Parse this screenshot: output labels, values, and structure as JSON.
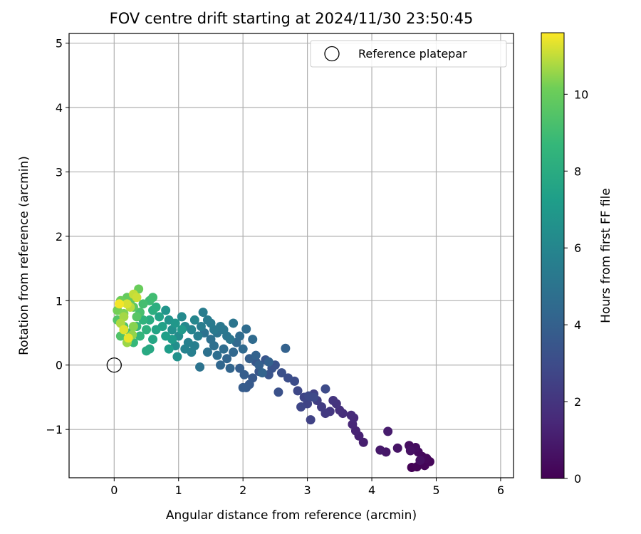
{
  "chart_data": {
    "type": "scatter",
    "title": "FOV centre drift starting at 2024/11/30 23:50:45",
    "xlabel": "Angular distance from reference (arcmin)",
    "ylabel": "Rotation from reference (arcmin)",
    "xlim": [
      -0.7,
      6.2
    ],
    "ylim": [
      -1.75,
      5.15
    ],
    "xticks": [
      0,
      1,
      2,
      3,
      4,
      5,
      6
    ],
    "yticks": [
      -1,
      0,
      1,
      2,
      3,
      4,
      5
    ],
    "grid": true,
    "colormap": "viridis",
    "colorbar": {
      "label": "Hours from first FF file",
      "range": [
        0,
        11.6
      ],
      "ticks": [
        0,
        2,
        4,
        6,
        8,
        10
      ]
    },
    "legend": {
      "position": "top-right",
      "entries": [
        "Reference platepar"
      ]
    },
    "reference_point": {
      "x": 0,
      "y": 0,
      "label": "Reference platepar"
    },
    "points": [
      [
        4.62,
        -1.59,
        0.05
      ],
      [
        4.7,
        -1.58,
        0.1
      ],
      [
        4.82,
        -1.56,
        0.15
      ],
      [
        4.9,
        -1.5,
        0.2
      ],
      [
        4.85,
        -1.45,
        0.25
      ],
      [
        4.78,
        -1.42,
        0.3
      ],
      [
        4.72,
        -1.35,
        0.35
      ],
      [
        4.65,
        -1.3,
        0.4
      ],
      [
        4.58,
        -1.25,
        0.45
      ],
      [
        4.68,
        -1.28,
        0.5
      ],
      [
        4.75,
        -1.48,
        0.55
      ],
      [
        4.6,
        -1.33,
        0.6
      ],
      [
        4.4,
        -1.29,
        0.7
      ],
      [
        4.22,
        -1.35,
        0.8
      ],
      [
        4.13,
        -1.32,
        0.9
      ],
      [
        4.25,
        -1.03,
        1.0
      ],
      [
        3.87,
        -1.2,
        1.1
      ],
      [
        3.8,
        -1.1,
        1.2
      ],
      [
        3.75,
        -1.02,
        1.3
      ],
      [
        3.7,
        -0.92,
        1.4
      ],
      [
        3.72,
        -0.82,
        1.5
      ],
      [
        3.68,
        -0.78,
        1.6
      ],
      [
        3.55,
        -0.75,
        1.7
      ],
      [
        3.5,
        -0.7,
        1.8
      ],
      [
        3.45,
        -0.6,
        1.9
      ],
      [
        3.4,
        -0.55,
        2.0
      ],
      [
        3.35,
        -0.72,
        2.1
      ],
      [
        3.28,
        -0.75,
        2.2
      ],
      [
        3.22,
        -0.65,
        2.3
      ],
      [
        3.15,
        -0.55,
        2.4
      ],
      [
        3.1,
        -0.45,
        2.5
      ],
      [
        3.05,
        -0.85,
        2.55
      ],
      [
        3.0,
        -0.6,
        2.6
      ],
      [
        2.95,
        -0.5,
        2.7
      ],
      [
        2.9,
        -0.65,
        2.75
      ],
      [
        2.85,
        -0.4,
        2.8
      ],
      [
        3.02,
        -0.48,
        2.85
      ],
      [
        3.1,
        -0.5,
        2.9
      ],
      [
        3.28,
        -0.37,
        2.95
      ],
      [
        2.8,
        -0.25,
        3.0
      ],
      [
        2.7,
        -0.2,
        3.1
      ],
      [
        2.6,
        -0.12,
        3.2
      ],
      [
        2.55,
        -0.42,
        3.25
      ],
      [
        2.5,
        0.0,
        3.3
      ],
      [
        2.45,
        -0.05,
        3.35
      ],
      [
        2.4,
        -0.15,
        3.4
      ],
      [
        2.35,
        0.08,
        3.45
      ],
      [
        2.25,
        -0.1,
        3.5
      ],
      [
        2.2,
        0.05,
        3.55
      ],
      [
        2.15,
        -0.2,
        3.6
      ],
      [
        2.1,
        -0.3,
        3.65
      ],
      [
        2.05,
        -0.35,
        3.7
      ],
      [
        2.0,
        -0.35,
        3.75
      ],
      [
        2.02,
        -0.15,
        3.8
      ],
      [
        1.95,
        -0.05,
        3.85
      ],
      [
        2.1,
        0.1,
        3.9
      ],
      [
        2.25,
        0.0,
        3.95
      ],
      [
        2.4,
        0.05,
        4.0
      ],
      [
        2.66,
        0.26,
        4.05
      ],
      [
        2.2,
        0.15,
        4.1
      ],
      [
        2.3,
        -0.12,
        4.15
      ],
      [
        1.8,
        -0.05,
        4.2
      ],
      [
        1.75,
        0.1,
        4.25
      ],
      [
        1.65,
        0.0,
        4.3
      ],
      [
        1.85,
        0.2,
        4.35
      ],
      [
        1.9,
        0.35,
        4.4
      ],
      [
        2.0,
        0.25,
        4.45
      ],
      [
        2.15,
        0.4,
        4.5
      ],
      [
        2.05,
        0.56,
        4.55
      ],
      [
        1.95,
        0.45,
        4.6
      ],
      [
        1.7,
        0.25,
        4.65
      ],
      [
        1.6,
        0.15,
        4.7
      ],
      [
        1.55,
        0.3,
        4.75
      ],
      [
        1.5,
        0.4,
        4.8
      ],
      [
        1.45,
        0.2,
        4.85
      ],
      [
        1.4,
        0.5,
        4.9
      ],
      [
        1.33,
        -0.03,
        4.95
      ],
      [
        1.6,
        0.5,
        5.0
      ],
      [
        1.75,
        0.45,
        5.05
      ],
      [
        1.85,
        0.65,
        5.1
      ],
      [
        1.8,
        0.4,
        5.15
      ],
      [
        1.7,
        0.55,
        5.2
      ],
      [
        1.65,
        0.6,
        5.25
      ],
      [
        1.55,
        0.55,
        5.3
      ],
      [
        1.5,
        0.65,
        5.35
      ],
      [
        1.45,
        0.7,
        5.4
      ],
      [
        1.38,
        0.82,
        5.45
      ],
      [
        1.35,
        0.6,
        5.5
      ],
      [
        1.3,
        0.45,
        5.55
      ],
      [
        1.25,
        0.3,
        5.6
      ],
      [
        1.2,
        0.2,
        5.65
      ],
      [
        1.15,
        0.35,
        5.7
      ],
      [
        1.1,
        0.25,
        5.8
      ],
      [
        1.2,
        0.55,
        5.9
      ],
      [
        1.25,
        0.7,
        6.0
      ],
      [
        1.1,
        0.6,
        6.1
      ],
      [
        1.05,
        0.75,
        6.2
      ],
      [
        1.0,
        0.45,
        6.3
      ],
      [
        0.95,
        0.3,
        6.4
      ],
      [
        0.9,
        0.55,
        6.5
      ],
      [
        0.98,
        0.13,
        6.6
      ],
      [
        0.85,
        0.7,
        6.7
      ],
      [
        0.8,
        0.85,
        6.8
      ],
      [
        0.95,
        0.65,
        6.9
      ],
      [
        1.05,
        0.55,
        7.0
      ],
      [
        0.9,
        0.4,
        7.1
      ],
      [
        0.85,
        0.25,
        7.2
      ],
      [
        0.8,
        0.45,
        7.3
      ],
      [
        0.75,
        0.6,
        7.4
      ],
      [
        0.7,
        0.75,
        7.5
      ],
      [
        0.65,
        0.55,
        7.6
      ],
      [
        0.6,
        0.4,
        7.7
      ],
      [
        0.55,
        0.25,
        7.8
      ],
      [
        0.5,
        0.22,
        7.9
      ],
      [
        0.55,
        0.7,
        8.0
      ],
      [
        0.6,
        0.85,
        8.1
      ],
      [
        0.65,
        0.9,
        8.2
      ],
      [
        0.5,
        0.55,
        8.3
      ],
      [
        0.45,
        0.7,
        8.4
      ],
      [
        0.4,
        0.45,
        8.5
      ],
      [
        0.35,
        0.6,
        8.6
      ],
      [
        0.3,
        0.35,
        8.7
      ],
      [
        0.25,
        0.5,
        8.8
      ],
      [
        0.55,
        1.0,
        8.9
      ],
      [
        0.6,
        1.05,
        9.0
      ],
      [
        0.45,
        0.95,
        9.1
      ],
      [
        0.4,
        0.82,
        9.2
      ],
      [
        0.15,
        0.6,
        9.3
      ],
      [
        0.1,
        0.45,
        9.4
      ],
      [
        0.05,
        0.7,
        9.5
      ],
      [
        0.35,
        0.75,
        9.6
      ],
      [
        0.3,
        0.9,
        9.7
      ],
      [
        0.25,
        1.0,
        9.8
      ],
      [
        0.2,
        1.05,
        9.9
      ],
      [
        0.38,
        1.18,
        10.0
      ],
      [
        0.1,
        1.0,
        10.1
      ],
      [
        0.05,
        0.85,
        10.2
      ],
      [
        0.15,
        0.8,
        10.3
      ],
      [
        0.3,
        0.6,
        10.4
      ],
      [
        0.28,
        0.47,
        10.5
      ],
      [
        0.2,
        0.35,
        10.6
      ],
      [
        0.15,
        0.75,
        10.7
      ],
      [
        0.1,
        0.65,
        10.8
      ],
      [
        0.25,
        0.9,
        10.9
      ],
      [
        0.3,
        1.1,
        11.0
      ],
      [
        0.35,
        1.05,
        11.1
      ],
      [
        0.2,
        0.95,
        11.2
      ],
      [
        0.15,
        0.55,
        11.3
      ],
      [
        0.22,
        0.42,
        11.4
      ],
      [
        0.08,
        0.95,
        11.5
      ]
    ]
  }
}
